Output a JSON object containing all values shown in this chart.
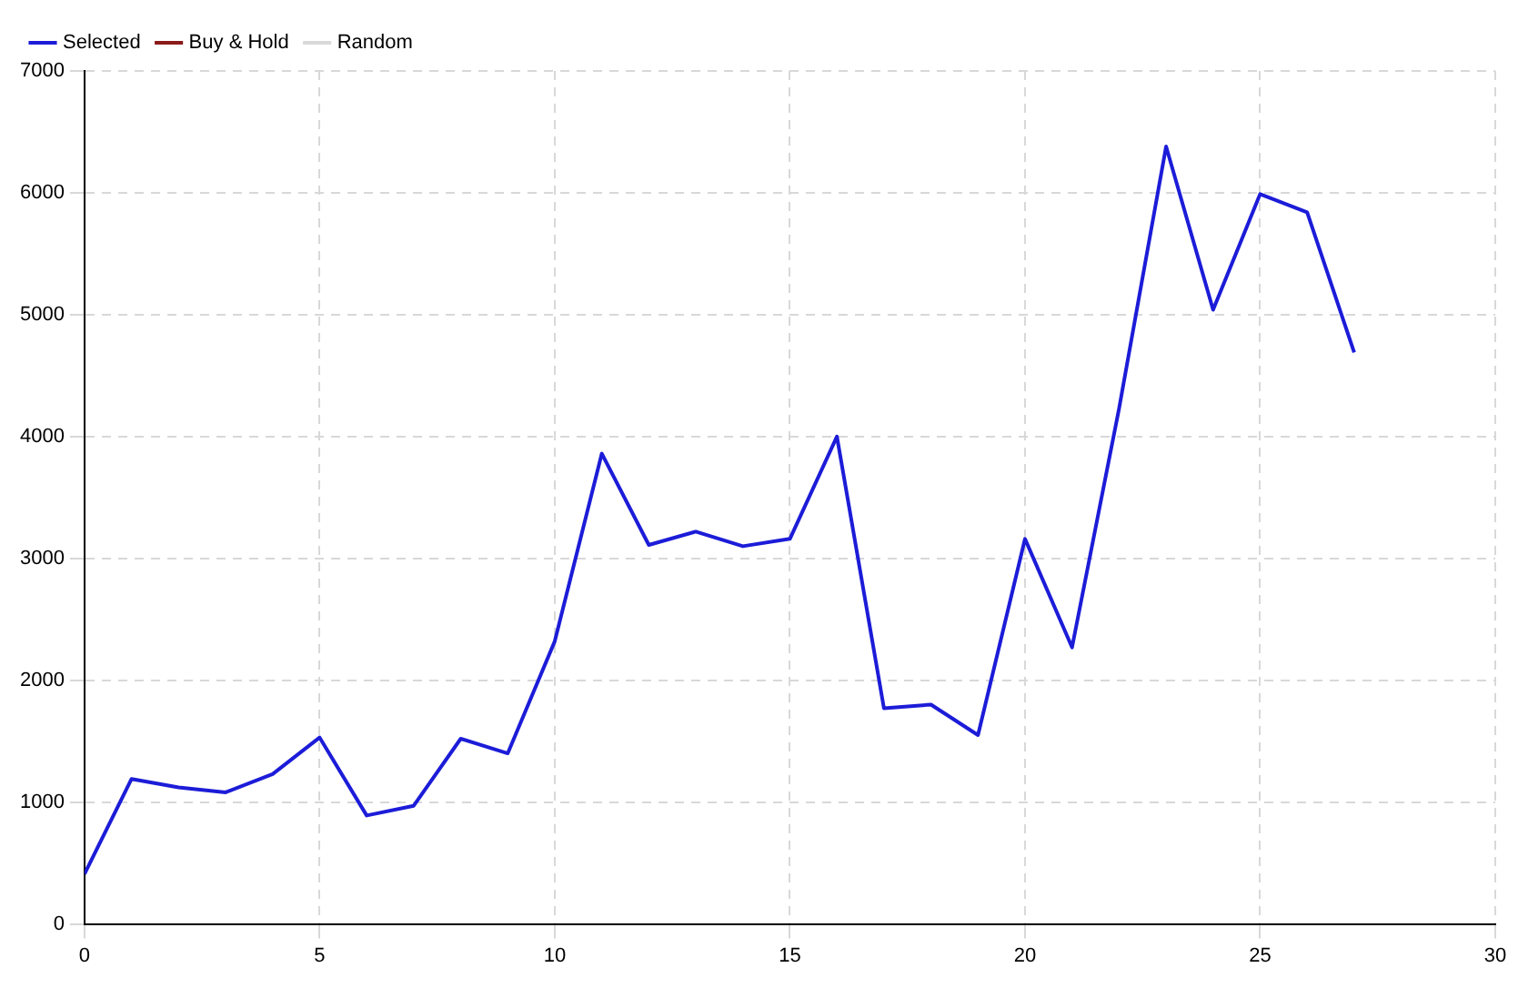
{
  "chart_data": {
    "type": "line",
    "x": [
      0,
      1,
      2,
      3,
      4,
      5,
      6,
      7,
      8,
      9,
      10,
      11,
      12,
      13,
      14,
      15,
      16,
      17,
      18,
      19,
      20,
      21,
      22,
      23,
      24,
      25,
      26,
      27
    ],
    "series": [
      {
        "name": "Selected",
        "color": "#1c1cd8",
        "values": [
          410,
          1190,
          1120,
          1080,
          1230,
          1530,
          890,
          970,
          1520,
          1400,
          2320,
          3860,
          3110,
          3220,
          3100,
          3160,
          4000,
          1770,
          1800,
          1550,
          3160,
          2270,
          4230,
          6380,
          5040,
          5990,
          5840,
          4690
        ]
      },
      {
        "name": "Buy & Hold",
        "color": "#8b1a1a",
        "values": [
          null,
          null,
          null,
          null,
          null,
          null,
          null,
          null,
          null,
          null,
          null,
          null,
          null,
          null,
          null,
          null,
          null,
          null,
          null,
          null,
          null,
          null,
          null,
          null,
          null,
          null,
          null,
          null
        ]
      },
      {
        "name": "Random",
        "color": "#d9d9d9",
        "values": [
          null,
          null,
          null,
          null,
          null,
          null,
          null,
          null,
          null,
          null,
          null,
          null,
          null,
          null,
          null,
          null,
          null,
          null,
          null,
          null,
          null,
          null,
          null,
          null,
          null,
          null,
          null,
          null
        ]
      }
    ],
    "xlim": [
      0,
      30
    ],
    "xticks": [
      0,
      5,
      10,
      15,
      20,
      25,
      30
    ],
    "ylim": [
      0,
      7000
    ],
    "yticks": [
      0,
      1000,
      2000,
      3000,
      4000,
      5000,
      6000,
      7000
    ],
    "grid": true,
    "legend": "top left",
    "marker": "none",
    "line_style": "solid"
  }
}
